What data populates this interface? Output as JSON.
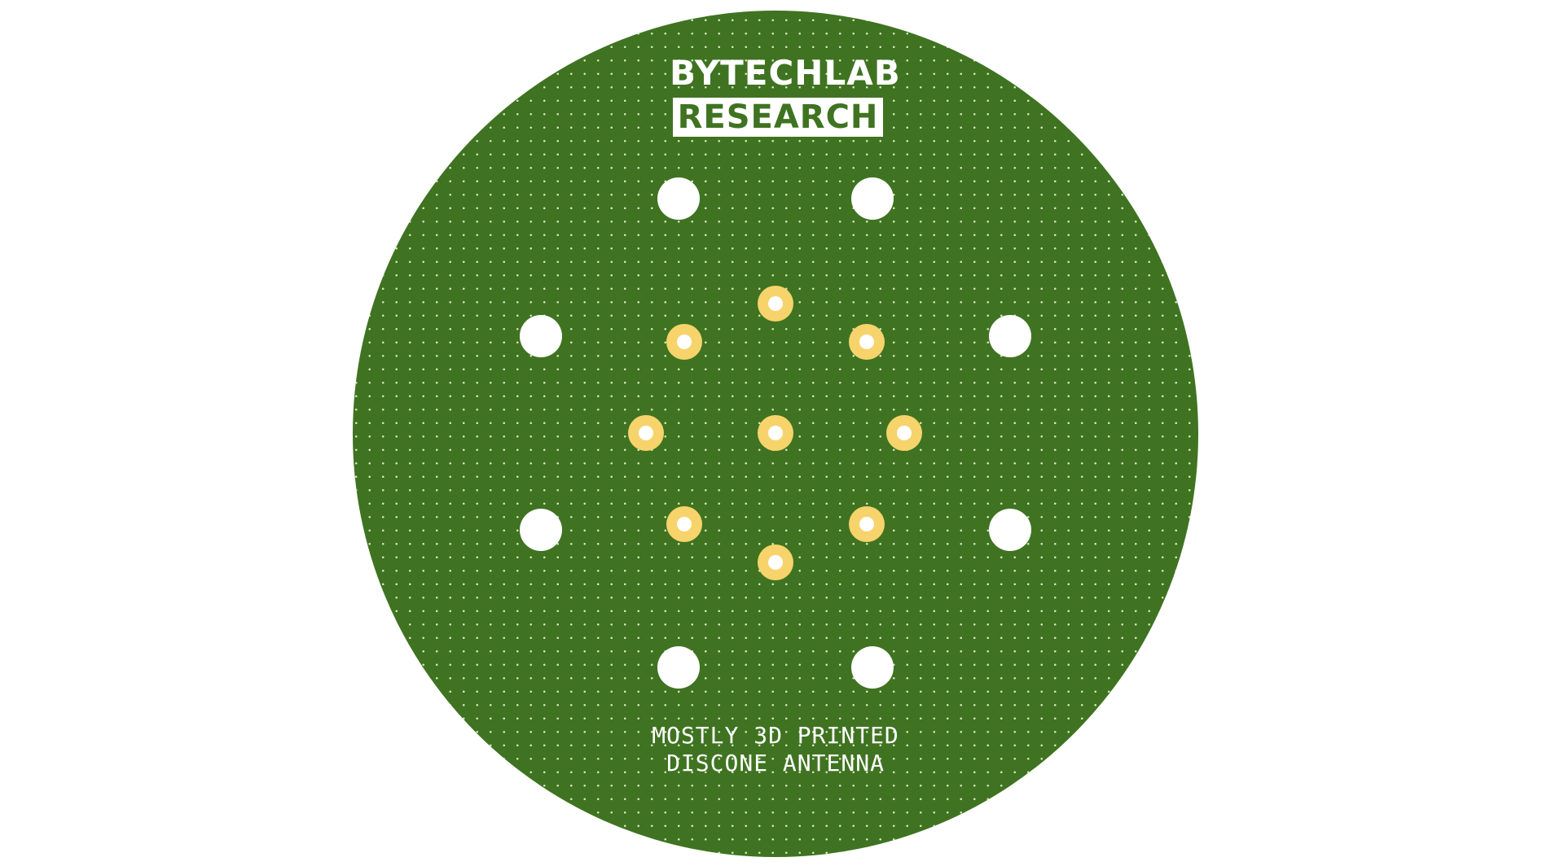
{
  "logo": {
    "line1": "BYTECHLAB",
    "line2": "RESEARCH"
  },
  "caption": {
    "line1": "MOSTLY 3D PRINTED",
    "line2": "DISCONE ANTENNA"
  },
  "colors": {
    "board": "#3f7321",
    "via_dots": "#cfe4b8",
    "mount_holes": "#ffffff",
    "pad_ring": "#f7d36b",
    "pad_hole": "#ffffff",
    "text": "#ffffff"
  }
}
